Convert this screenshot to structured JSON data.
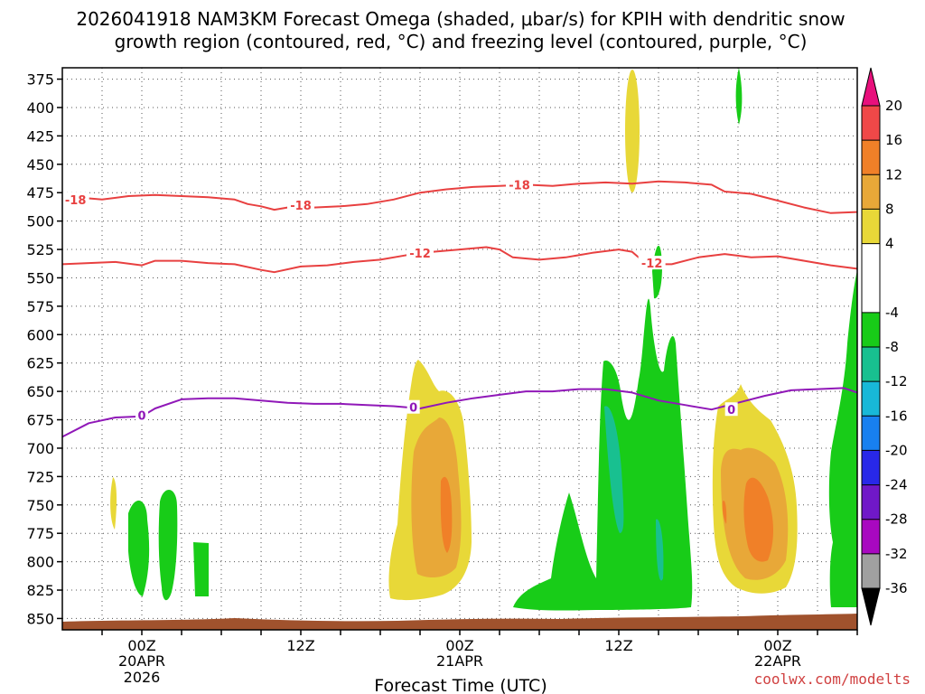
{
  "chart_data": {
    "type": "heatmap",
    "title_line1": "2026041918 NAM3KM Forecast Omega (shaded, μbar/s) for KPIH with dendritic snow",
    "title_line2": "growth region (contoured, red, °C) and freezing level (contoured, purple, °C)",
    "xlabel": "Forecast Time (UTC)",
    "ylabel": "",
    "x_range_hours": [
      -6,
      54
    ],
    "y_range_hpa": [
      365,
      860
    ],
    "y_ticks": [
      375,
      400,
      425,
      450,
      475,
      500,
      525,
      550,
      575,
      600,
      625,
      650,
      675,
      700,
      725,
      750,
      775,
      800,
      825,
      850
    ],
    "x_ticks": [
      {
        "hour": 0,
        "line1": "00Z",
        "line2": "20APR",
        "line3": "2026"
      },
      {
        "hour": 12,
        "line1": "12Z",
        "line2": "",
        "line3": ""
      },
      {
        "hour": 24,
        "line1": "00Z",
        "line2": "21APR",
        "line3": ""
      },
      {
        "hour": 36,
        "line1": "12Z",
        "line2": "",
        "line3": ""
      },
      {
        "hour": 48,
        "line1": "00Z",
        "line2": "22APR",
        "line3": ""
      }
    ],
    "colorbar": {
      "labels": [
        "20",
        "16",
        "12",
        "8",
        "4",
        "-4",
        "-8",
        "-12",
        "-16",
        "-20",
        "-24",
        "-28",
        "-32",
        "-36"
      ],
      "segments": [
        {
          "from": 16,
          "to": 20,
          "color": "#f04848"
        },
        {
          "from": 12,
          "to": 16,
          "color": "#f08028"
        },
        {
          "from": 8,
          "to": 12,
          "color": "#e8a838"
        },
        {
          "from": 4,
          "to": 8,
          "color": "#e8d838"
        },
        {
          "from": -4,
          "to": 4,
          "color": "#ffffff"
        },
        {
          "from": -8,
          "to": -4,
          "color": "#18cc18"
        },
        {
          "from": -12,
          "to": -8,
          "color": "#18c090"
        },
        {
          "from": -16,
          "to": -12,
          "color": "#18b8d8"
        },
        {
          "from": -20,
          "to": -16,
          "color": "#1880f0"
        },
        {
          "from": -24,
          "to": -20,
          "color": "#2828e8"
        },
        {
          "from": -28,
          "to": -24,
          "color": "#7018c8"
        },
        {
          "from": -32,
          "to": -28,
          "color": "#a808c0"
        },
        {
          "from": -36,
          "to": -32,
          "color": "#a0a0a0"
        }
      ],
      "top_arrow_color": "#e8107c",
      "bottom_arrow_color": "#000000"
    },
    "series": [
      {
        "name": "-18C isotherm",
        "color": "#e84040",
        "label": "-18",
        "points": [
          [
            -6,
            481
          ],
          [
            -4,
            480
          ],
          [
            -3,
            481
          ],
          [
            -1,
            478
          ],
          [
            1,
            477
          ],
          [
            3,
            478
          ],
          [
            5,
            479
          ],
          [
            7,
            481
          ],
          [
            8,
            485
          ],
          [
            9,
            487
          ],
          [
            10,
            490
          ],
          [
            11,
            488
          ],
          [
            12,
            487
          ],
          [
            13,
            488
          ],
          [
            15,
            487
          ],
          [
            17,
            485
          ],
          [
            19,
            481
          ],
          [
            21,
            475
          ],
          [
            23,
            472
          ],
          [
            25,
            470
          ],
          [
            27,
            469
          ],
          [
            29,
            468
          ],
          [
            31,
            469
          ],
          [
            33,
            467
          ],
          [
            35,
            466
          ],
          [
            37,
            467
          ],
          [
            39,
            465
          ],
          [
            41,
            466
          ],
          [
            43,
            468
          ],
          [
            44,
            474
          ],
          [
            46,
            476
          ],
          [
            48,
            482
          ],
          [
            50,
            488
          ],
          [
            52,
            493
          ],
          [
            54,
            492
          ]
        ],
        "labels": [
          [
            -5,
            481
          ],
          [
            12,
            486
          ],
          [
            28.5,
            468
          ]
        ]
      },
      {
        "name": "-12C isotherm",
        "color": "#e84040",
        "label": "-12",
        "points": [
          [
            -6,
            538
          ],
          [
            -4,
            537
          ],
          [
            -2,
            536
          ],
          [
            0,
            539
          ],
          [
            1,
            535
          ],
          [
            3,
            535
          ],
          [
            5,
            537
          ],
          [
            7,
            538
          ],
          [
            9,
            543
          ],
          [
            10,
            545
          ],
          [
            12,
            540
          ],
          [
            14,
            539
          ],
          [
            16,
            536
          ],
          [
            18,
            534
          ],
          [
            20,
            530
          ],
          [
            22,
            527
          ],
          [
            24,
            525
          ],
          [
            26,
            523
          ],
          [
            27,
            525
          ],
          [
            28,
            532
          ],
          [
            30,
            534
          ],
          [
            32,
            532
          ],
          [
            34,
            528
          ],
          [
            36,
            525
          ],
          [
            37,
            527
          ],
          [
            38,
            537
          ],
          [
            39,
            538
          ],
          [
            40,
            538
          ],
          [
            42,
            532
          ],
          [
            44,
            529
          ],
          [
            46,
            532
          ],
          [
            48,
            531
          ],
          [
            50,
            535
          ],
          [
            52,
            539
          ],
          [
            54,
            542
          ]
        ],
        "labels": [
          [
            21,
            528
          ],
          [
            38.5,
            537
          ]
        ]
      },
      {
        "name": "0C freezing level",
        "color": "#9018b8",
        "label": "0",
        "points": [
          [
            -6,
            690
          ],
          [
            -4,
            678
          ],
          [
            -2,
            673
          ],
          [
            0,
            672
          ],
          [
            1,
            665
          ],
          [
            3,
            657
          ],
          [
            5,
            656
          ],
          [
            7,
            656
          ],
          [
            9,
            658
          ],
          [
            11,
            660
          ],
          [
            13,
            661
          ],
          [
            15,
            661
          ],
          [
            17,
            662
          ],
          [
            19,
            663
          ],
          [
            21,
            665
          ],
          [
            23,
            660
          ],
          [
            25,
            656
          ],
          [
            27,
            653
          ],
          [
            29,
            650
          ],
          [
            31,
            650
          ],
          [
            33,
            648
          ],
          [
            35,
            648
          ],
          [
            37,
            651
          ],
          [
            39,
            658
          ],
          [
            41,
            662
          ],
          [
            43,
            666
          ],
          [
            45,
            660
          ],
          [
            47,
            654
          ],
          [
            49,
            649
          ],
          [
            51,
            648
          ],
          [
            53,
            647
          ],
          [
            54,
            651
          ]
        ],
        "labels": [
          [
            0,
            671
          ],
          [
            20.5,
            664
          ],
          [
            44.5,
            666
          ]
        ]
      }
    ],
    "credit": "coolwx.com/modelts"
  }
}
